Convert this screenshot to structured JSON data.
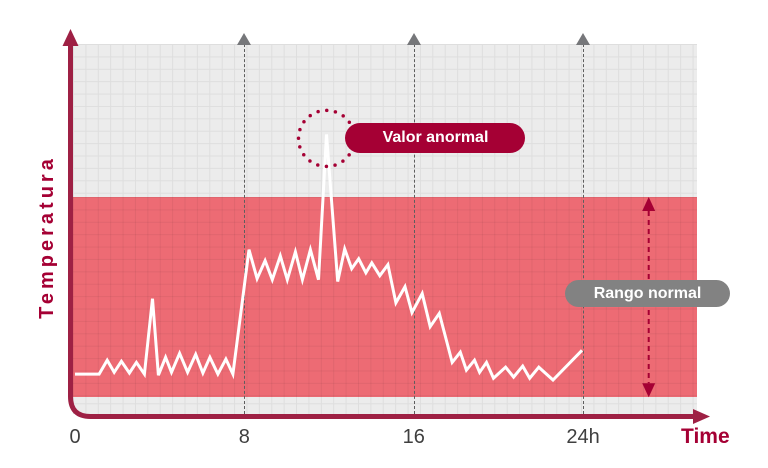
{
  "figure": {
    "y_axis_label": "Temperatura",
    "x_axis_label": "Time",
    "badges": {
      "abnormal": "Valor anormal",
      "normal_range": "Rango normal"
    }
  },
  "colors": {
    "brand_crimson": "#A50034",
    "axis_crimson": "#9E2044",
    "band_pink": "#ED6B74",
    "line_white": "#FFFFFF",
    "badge_gray": "#828282",
    "marker_gray": "#76777A",
    "grid_bg": "#ECECEC",
    "grid_line": "#DEDEDE",
    "tick_text": "#3F3F3F"
  },
  "chart_data": {
    "type": "line",
    "title": "",
    "xlabel": "Time",
    "ylabel": "Temperatura",
    "x_unit": "hours",
    "y_unit": "relative temperature (0-100, axis unlabeled)",
    "xlim": [
      0,
      29.4
    ],
    "ylim": [
      0,
      100
    ],
    "grid": true,
    "x_ticks": [
      {
        "label": "0",
        "hour": 0
      },
      {
        "label": "8",
        "hour": 8
      },
      {
        "label": "16",
        "hour": 16
      },
      {
        "label": "24h",
        "hour": 24
      }
    ],
    "dashed_guides_hours": [
      8,
      16,
      24
    ],
    "series": [
      {
        "name": "Temperatura",
        "color": "#FFFFFF",
        "points": [
          [
            0,
            9.8
          ],
          [
            1.14,
            9.8
          ],
          [
            1.52,
            13.6
          ],
          [
            1.85,
            10.3
          ],
          [
            2.19,
            13.3
          ],
          [
            2.57,
            10.1
          ],
          [
            2.9,
            13
          ],
          [
            3.28,
            9.8
          ],
          [
            3.66,
            30.4
          ],
          [
            3.94,
            9.5
          ],
          [
            4.28,
            14.4
          ],
          [
            4.56,
            10.3
          ],
          [
            4.94,
            15.5
          ],
          [
            5.32,
            10.3
          ],
          [
            5.7,
            15.2
          ],
          [
            6.04,
            10.1
          ],
          [
            6.37,
            14.4
          ],
          [
            6.75,
            9.8
          ],
          [
            7.13,
            13.9
          ],
          [
            7.46,
            9.8
          ],
          [
            8.22,
            43.8
          ],
          [
            8.6,
            35.9
          ],
          [
            8.98,
            40.8
          ],
          [
            9.32,
            35.6
          ],
          [
            9.7,
            42.1
          ],
          [
            10.03,
            35.6
          ],
          [
            10.41,
            43.2
          ],
          [
            10.74,
            35.6
          ],
          [
            11.12,
            43.8
          ],
          [
            11.5,
            35.6
          ],
          [
            11.88,
            75.3
          ],
          [
            12.41,
            35.1
          ],
          [
            12.74,
            44
          ],
          [
            13.07,
            38.6
          ],
          [
            13.4,
            41.3
          ],
          [
            13.74,
            37.5
          ],
          [
            14.02,
            40.2
          ],
          [
            14.4,
            36.7
          ],
          [
            14.78,
            39.7
          ],
          [
            15.16,
            29.3
          ],
          [
            15.59,
            33.7
          ],
          [
            15.92,
            26.6
          ],
          [
            16.4,
            31.8
          ],
          [
            16.78,
            22.8
          ],
          [
            17.21,
            26.4
          ],
          [
            17.82,
            13
          ],
          [
            18.2,
            15.8
          ],
          [
            18.49,
            10.9
          ],
          [
            18.87,
            13.6
          ],
          [
            19.11,
            10.3
          ],
          [
            19.44,
            13
          ],
          [
            19.77,
            8.7
          ],
          [
            20.34,
            11.7
          ],
          [
            20.72,
            9
          ],
          [
            21.15,
            12
          ],
          [
            21.48,
            8.7
          ],
          [
            21.91,
            11.7
          ],
          [
            22.58,
            8.2
          ],
          [
            23.95,
            16.3
          ]
        ]
      }
    ],
    "normal_range": {
      "label": "Rango normal",
      "value_from": 3.5,
      "value_to": 58.2,
      "arrow_hour": 27.1
    },
    "abnormal_point": {
      "label": "Valor anormal",
      "hour": 11.88,
      "value": 75.3
    }
  }
}
